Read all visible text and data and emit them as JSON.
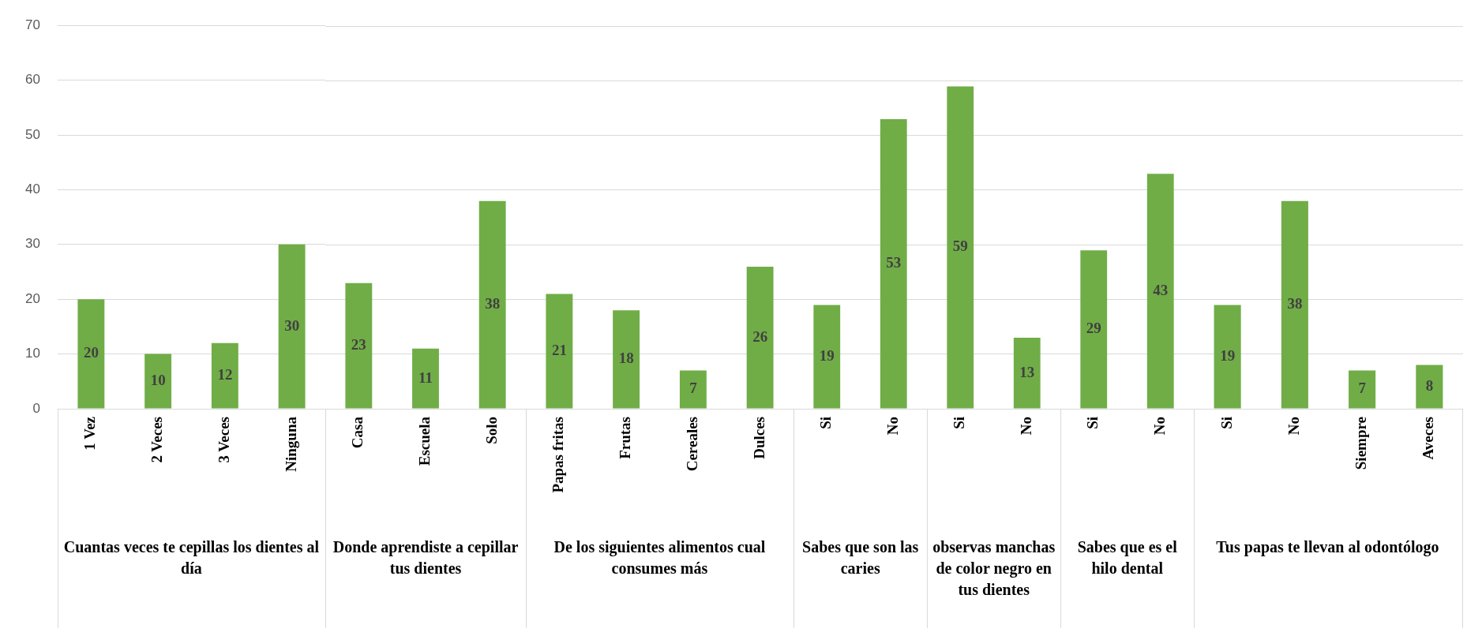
{
  "chart_data": [
    {
      "type": "bar",
      "title": "Cuantas veces te cepillas los dientes al día",
      "categories": [
        "1 Vez",
        "2 Veces",
        "3 Veces",
        "Ninguna"
      ],
      "values": [
        20,
        10,
        12,
        30
      ],
      "color": "#70ad47",
      "ylim": [
        0,
        70
      ],
      "yticks": [
        0,
        10,
        20,
        30,
        40,
        50,
        60,
        70
      ],
      "grid": "y",
      "data_labels": true
    },
    {
      "type": "bar",
      "title": "Donde aprendiste a cepillar tus dientes",
      "categories": [
        "Casa",
        "Escuela",
        "Solo"
      ],
      "values": [
        23,
        11,
        38
      ],
      "color": "#70ad47",
      "ylim": [
        0,
        70
      ],
      "yticks": [
        0,
        10,
        20,
        30,
        40,
        50,
        60,
        70
      ],
      "grid": "y",
      "data_labels": true,
      "tick_labels": "x"
    },
    {
      "type": "bar",
      "title": "De los siguientes alimentos cual consumes más",
      "categories": [
        "Papas fritas",
        "Frutas",
        "Cereales",
        "Dulces"
      ],
      "values": [
        21,
        18,
        7,
        26
      ],
      "color": "#70ad47",
      "ylim": [
        0,
        70
      ],
      "yticks": [
        0,
        10,
        20,
        30,
        40,
        50,
        60,
        70
      ],
      "grid": "y",
      "data_labels": true,
      "tick_labels": "x"
    },
    {
      "type": "bar",
      "title": "Sabes que son las caries",
      "categories": [
        "Si",
        "No"
      ],
      "values": [
        19,
        53
      ],
      "color": "#70ad47",
      "ylim": [
        0,
        70
      ],
      "yticks": [
        0,
        10,
        20,
        30,
        40,
        50,
        60,
        70
      ],
      "grid": "y",
      "data_labels": true,
      "tick_labels": "x"
    },
    {
      "type": "bar",
      "title": "observas manchas de color negro en tus dientes",
      "categories": [
        "Si",
        "No"
      ],
      "values": [
        59,
        13
      ],
      "color": "#70ad47",
      "ylim": [
        0,
        70
      ],
      "yticks": [
        0,
        10,
        20,
        30,
        40,
        50,
        60,
        70
      ],
      "grid": "y",
      "data_labels": true,
      "tick_labels": "x"
    },
    {
      "type": "bar",
      "title": "Sabes que es el hilo dental",
      "categories": [
        "Si",
        "No"
      ],
      "values": [
        29,
        43
      ],
      "color": "#70ad47",
      "ylim": [
        0,
        70
      ],
      "yticks": [
        0,
        10,
        20,
        30,
        40,
        50,
        60,
        70
      ],
      "grid": "y",
      "data_labels": true,
      "tick_labels": "x"
    },
    {
      "type": "bar",
      "title": "Tus papas te llevan al odontólogo",
      "categories": [
        "Si",
        "No",
        "Siempre",
        "Aveces"
      ],
      "values": [
        19,
        38,
        7,
        8
      ],
      "color": "#70ad47",
      "ylim": [
        0,
        70
      ],
      "yticks": [
        0,
        10,
        20,
        30,
        40,
        50,
        60,
        70
      ],
      "grid": "y",
      "data_labels": true,
      "tick_labels": "x"
    }
  ]
}
